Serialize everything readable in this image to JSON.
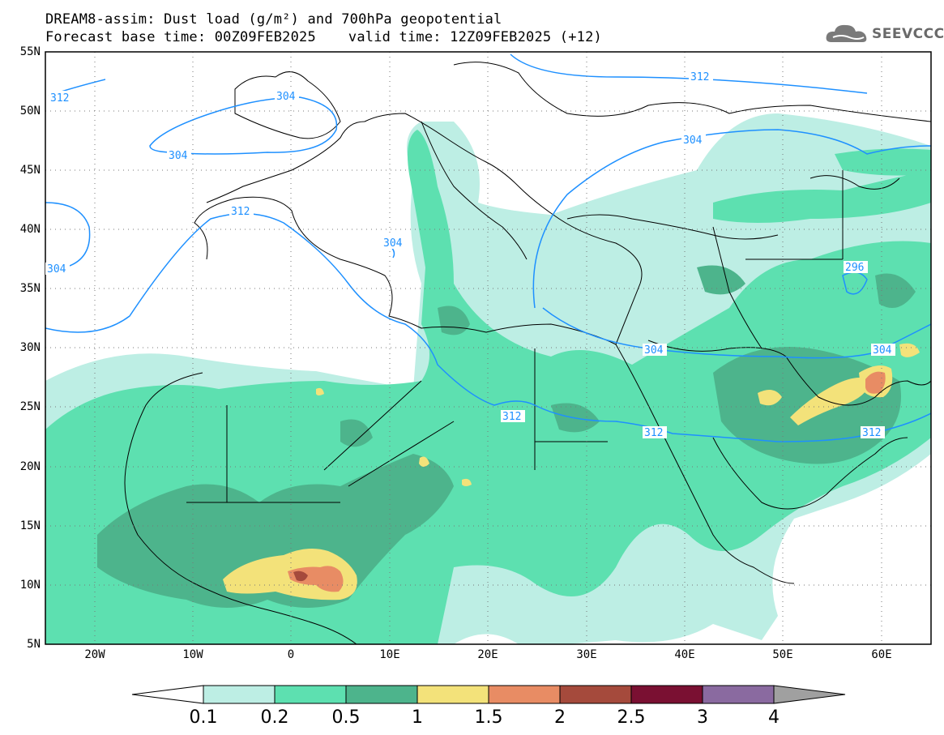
{
  "title": {
    "line1": "DREAM8-assim: Dust load (g/m²) and 700hPa geopotential",
    "base_time": "Forecast base time: 00Z09FEB2025",
    "valid_time": "valid time: 12Z09FEB2025 (+12)"
  },
  "logo": {
    "text": "SEEVCCC",
    "icon": "cloud-icon"
  },
  "map_data": {
    "lat_range": [
      5,
      55
    ],
    "lon_range": [
      -25,
      65
    ],
    "lat_ticks": [
      "55N",
      "50N",
      "45N",
      "40N",
      "35N",
      "30N",
      "25N",
      "20N",
      "15N",
      "10N",
      "5N"
    ],
    "lon_ticks": [
      "20W",
      "10W",
      "0",
      "10E",
      "20E",
      "30E",
      "40E",
      "50E",
      "60E"
    ],
    "contour_labels": [
      "312",
      "304",
      "304",
      "312",
      "304",
      "304",
      "312",
      "304",
      "296",
      "312",
      "304",
      "312",
      "312"
    ],
    "contour_color": "#1e90ff"
  },
  "colorbar": {
    "labels": [
      "0.1",
      "0.2",
      "0.5",
      "1",
      "1.5",
      "2",
      "2.5",
      "3",
      "4"
    ],
    "colors": [
      "#bdeee4",
      "#5de0b0",
      "#4db48c",
      "#f3e27a",
      "#e88c64",
      "#a54a3c",
      "#7a1032",
      "#8a6aa0",
      "#a0a0a0"
    ]
  }
}
